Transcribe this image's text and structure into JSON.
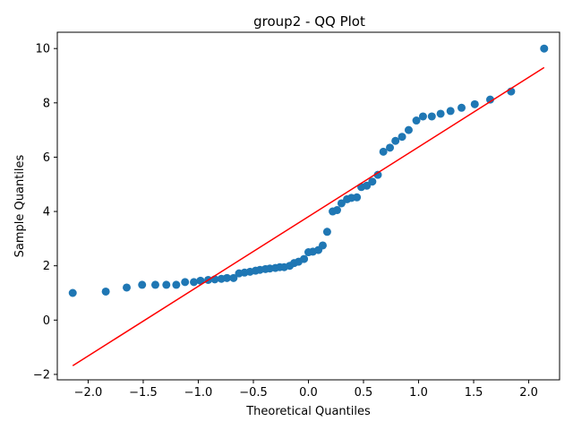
{
  "chart_data": {
    "type": "scatter",
    "title": "group2 - QQ Plot",
    "xlabel": "Theoretical Quantiles",
    "ylabel": "Sample Quantiles",
    "xlim": [
      -2.28,
      2.28
    ],
    "ylim": [
      -2.2,
      10.6
    ],
    "xticks": [
      -2.0,
      -1.5,
      -1.0,
      -0.5,
      0.0,
      0.5,
      1.0,
      1.5,
      2.0
    ],
    "xtick_labels": [
      "−2.0",
      "−1.5",
      "−1.0",
      "−0.5",
      "0.0",
      "0.5",
      "1.0",
      "1.5",
      "2.0"
    ],
    "yticks": [
      -2,
      0,
      2,
      4,
      6,
      8,
      10
    ],
    "ytick_labels": [
      "−2",
      "0",
      "2",
      "4",
      "6",
      "8",
      "10"
    ],
    "grid": false,
    "legend": false,
    "colors": {
      "points": "#1f77b4",
      "line": "#ff0000"
    },
    "series": [
      {
        "values_x": [
          -2.14,
          -1.84,
          -1.65,
          -1.51,
          -1.39,
          -1.29,
          -1.2,
          -1.12,
          -1.04,
          -0.98,
          -0.91,
          -0.85,
          -0.79,
          -0.74,
          -0.68,
          -0.63,
          -0.58,
          -0.53,
          -0.48,
          -0.44,
          -0.39,
          -0.35,
          -0.3,
          -0.26,
          -0.22,
          -0.17,
          -0.13,
          -0.09,
          -0.04,
          0.0,
          0.04,
          0.09,
          0.13,
          0.17,
          0.22,
          0.26,
          0.3,
          0.35,
          0.39,
          0.44,
          0.48,
          0.53,
          0.58,
          0.63,
          0.68,
          0.74,
          0.79,
          0.85,
          0.91,
          0.98,
          1.04,
          1.12,
          1.2,
          1.29,
          1.39,
          1.51,
          1.65,
          1.84,
          2.14
        ],
        "values_y": [
          1.0,
          1.05,
          1.2,
          1.3,
          1.3,
          1.3,
          1.3,
          1.4,
          1.4,
          1.45,
          1.48,
          1.5,
          1.52,
          1.55,
          1.55,
          1.72,
          1.75,
          1.78,
          1.82,
          1.85,
          1.88,
          1.9,
          1.92,
          1.95,
          1.95,
          2.0,
          2.1,
          2.15,
          2.25,
          2.5,
          2.52,
          2.58,
          2.75,
          3.25,
          4.0,
          4.05,
          4.3,
          4.45,
          4.5,
          4.52,
          4.9,
          4.95,
          5.1,
          5.35,
          6.2,
          6.35,
          6.6,
          6.75,
          7.0,
          7.35,
          7.5,
          7.5,
          7.6,
          7.7,
          7.82,
          7.95,
          8.12,
          8.42,
          10.0
        ]
      },
      {
        "line_x": [
          -2.14,
          2.14
        ],
        "line_y": [
          -1.68,
          9.3
        ]
      }
    ]
  }
}
